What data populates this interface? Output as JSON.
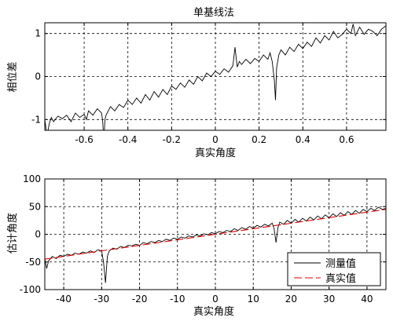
{
  "colors": {
    "measured": "#000000",
    "true": "#e00000",
    "background": "#ffffff"
  },
  "chart_data": [
    {
      "type": "line",
      "title": "单基线法",
      "xlabel": "真实角度",
      "ylabel": "相位差",
      "xlim": [
        -0.78,
        0.78
      ],
      "ylim": [
        -1.25,
        1.25
      ],
      "xticks": [
        -0.6,
        -0.4,
        -0.2,
        0,
        0.2,
        0.4,
        0.6
      ],
      "xtick_labels": [
        "-0.6",
        "-0.4",
        "-0.2",
        "0",
        "0.2",
        "0.4",
        "0.6"
      ],
      "yticks": [
        1,
        0,
        -1
      ],
      "ytick_labels": [
        "1",
        "0",
        "-1"
      ],
      "grid": true,
      "series": [
        {
          "color": "#000000",
          "x": [
            -0.78,
            -0.77,
            -0.76,
            -0.75,
            -0.74,
            -0.72,
            -0.7,
            -0.68,
            -0.66,
            -0.64,
            -0.62,
            -0.6,
            -0.59,
            -0.58,
            -0.56,
            -0.54,
            -0.52,
            -0.515,
            -0.51,
            -0.505,
            -0.5,
            -0.48,
            -0.46,
            -0.44,
            -0.42,
            -0.4,
            -0.38,
            -0.36,
            -0.34,
            -0.32,
            -0.3,
            -0.28,
            -0.26,
            -0.24,
            -0.22,
            -0.2,
            -0.18,
            -0.16,
            -0.14,
            -0.12,
            -0.1,
            -0.08,
            -0.06,
            -0.04,
            -0.02,
            0.0,
            0.02,
            0.04,
            0.06,
            0.08,
            0.09,
            0.1,
            0.11,
            0.12,
            0.14,
            0.16,
            0.18,
            0.2,
            0.22,
            0.24,
            0.25,
            0.26,
            0.27,
            0.275,
            0.28,
            0.29,
            0.3,
            0.32,
            0.34,
            0.36,
            0.38,
            0.4,
            0.42,
            0.44,
            0.46,
            0.48,
            0.5,
            0.52,
            0.54,
            0.56,
            0.58,
            0.6,
            0.62,
            0.63,
            0.64,
            0.66,
            0.68,
            0.7,
            0.72,
            0.74,
            0.76,
            0.78
          ],
          "y": [
            -1.0,
            -1.38,
            -1.1,
            -0.95,
            -1.05,
            -0.92,
            -0.98,
            -0.9,
            -1.05,
            -0.85,
            -0.95,
            -0.88,
            -1.0,
            -0.8,
            -0.9,
            -0.75,
            -0.85,
            -1.05,
            -1.52,
            -1.0,
            -0.9,
            -0.7,
            -0.8,
            -0.65,
            -0.72,
            -0.55,
            -0.65,
            -0.5,
            -0.62,
            -0.42,
            -0.55,
            -0.35,
            -0.48,
            -0.3,
            -0.42,
            -0.22,
            -0.3,
            -0.15,
            -0.25,
            -0.08,
            -0.18,
            0.0,
            -0.1,
            0.08,
            0.0,
            0.12,
            0.05,
            0.18,
            0.1,
            0.25,
            0.68,
            0.22,
            0.35,
            0.28,
            0.4,
            0.3,
            0.42,
            0.35,
            0.5,
            0.4,
            0.55,
            0.35,
            -0.1,
            -0.55,
            0.2,
            0.5,
            0.62,
            0.5,
            0.68,
            0.58,
            0.75,
            0.65,
            0.8,
            0.7,
            0.9,
            0.78,
            0.95,
            0.85,
            1.05,
            0.9,
            0.98,
            1.1,
            1.0,
            1.22,
            0.95,
            1.15,
            0.98,
            1.1,
            1.05,
            0.95,
            1.1,
            1.18
          ]
        }
      ]
    },
    {
      "type": "line",
      "title": "",
      "xlabel": "真实角度",
      "ylabel": "估计角度",
      "xlim": [
        -45,
        45
      ],
      "ylim": [
        -100,
        100
      ],
      "xticks": [
        -40,
        -30,
        -20,
        -10,
        0,
        10,
        20,
        30,
        40
      ],
      "xtick_labels": [
        "-40",
        "-30",
        "-20",
        "-10",
        "0",
        "10",
        "20",
        "30",
        "40"
      ],
      "yticks": [
        100,
        50,
        0,
        -50,
        -100
      ],
      "ytick_labels": [
        "100",
        "50",
        "0",
        "-50",
        "-100"
      ],
      "grid": true,
      "legend": {
        "position": "bottom-right",
        "entries": [
          "测量值",
          "真实值"
        ]
      },
      "series": [
        {
          "name": "测量值",
          "color": "#000000",
          "x": [
            -45,
            -44.5,
            -44,
            -43,
            -42,
            -41,
            -40,
            -39,
            -38,
            -37,
            -36,
            -35,
            -34,
            -33,
            -32,
            -31,
            -30,
            -29.5,
            -29,
            -28.5,
            -28,
            -27,
            -26,
            -25,
            -24,
            -23,
            -22,
            -21,
            -20,
            -19,
            -18,
            -17,
            -16,
            -15,
            -14,
            -13,
            -12,
            -11,
            -10,
            -9,
            -8,
            -7,
            -6,
            -5,
            -4,
            -3,
            -2,
            -1,
            0,
            1,
            2,
            3,
            4,
            5,
            6,
            7,
            8,
            9,
            10,
            11,
            12,
            13,
            14,
            15,
            15.5,
            16,
            16.5,
            17,
            18,
            19,
            20,
            21,
            22,
            23,
            24,
            25,
            26,
            27,
            28,
            29,
            30,
            31,
            32,
            33,
            34,
            35,
            36,
            37,
            38,
            39,
            40,
            41,
            42,
            43,
            44,
            45
          ],
          "y": [
            -45,
            -62,
            -48,
            -40,
            -44,
            -38,
            -40,
            -36,
            -38,
            -34,
            -36,
            -32,
            -34,
            -30,
            -33,
            -28,
            -30,
            -50,
            -88,
            -40,
            -30,
            -25,
            -27,
            -22,
            -24,
            -20,
            -21,
            -18,
            -20,
            -15,
            -17,
            -13,
            -15,
            -11,
            -13,
            -9,
            -11,
            -7,
            -9,
            -5,
            -7,
            -3,
            -5,
            -1,
            -3,
            1,
            -1,
            3,
            1,
            5,
            3,
            7,
            5,
            10,
            7,
            12,
            9,
            14,
            11,
            16,
            13,
            18,
            15,
            20,
            10,
            -15,
            12,
            22,
            18,
            25,
            20,
            27,
            22,
            29,
            24,
            31,
            26,
            33,
            28,
            35,
            30,
            37,
            32,
            39,
            34,
            41,
            36,
            43,
            38,
            45,
            41,
            47,
            43,
            49,
            45,
            47
          ]
        },
        {
          "name": "真实值",
          "color": "#e00000",
          "dash": true,
          "x": [
            -45,
            45
          ],
          "y": [
            -45,
            45
          ]
        }
      ]
    }
  ]
}
